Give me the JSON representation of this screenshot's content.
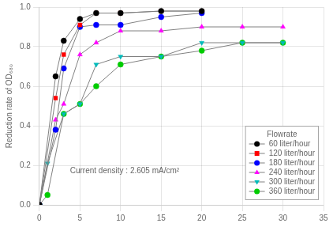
{
  "chart_data": {
    "type": "line",
    "ylabel": "Reduction rate of OD₆₈₀",
    "annotation": "Current density : 2.605 mA/cm²",
    "legend_title": "Flowrate",
    "color": "#808080",
    "series": [
      {
        "name": "60 liter/hour",
        "color": "#000000",
        "marker": "circle",
        "x": [
          0,
          2,
          3,
          5,
          7,
          10,
          15,
          20
        ],
        "values": [
          0.0,
          0.65,
          0.83,
          0.94,
          0.97,
          0.97,
          0.98,
          0.98
        ]
      },
      {
        "name": "120 liter/hour",
        "color": "#ff0000",
        "marker": "square",
        "x": [
          0,
          2,
          3,
          5,
          7,
          10,
          15,
          20
        ],
        "values": [
          0.0,
          0.54,
          0.76,
          0.91,
          0.97,
          0.97,
          0.98,
          0.98
        ]
      },
      {
        "name": "180 liter/hour",
        "color": "#0000ff",
        "marker": "circle",
        "x": [
          0,
          2,
          3,
          5,
          7,
          10,
          15,
          20
        ],
        "values": [
          0.0,
          0.38,
          0.69,
          0.9,
          0.91,
          0.91,
          0.95,
          0.97
        ]
      },
      {
        "name": "240 liter/hour",
        "color": "#ff00ff",
        "marker": "triangle_up",
        "x": [
          0,
          2,
          3,
          5,
          7,
          10,
          15,
          20,
          25,
          30
        ],
        "values": [
          0.0,
          0.43,
          0.51,
          0.76,
          0.82,
          0.88,
          0.88,
          0.9,
          0.9,
          0.9
        ]
      },
      {
        "name": "300 liter/hour",
        "color": "#00bbbb",
        "marker": "triangle_down",
        "x": [
          0,
          1,
          3,
          5,
          7,
          10,
          15,
          20,
          25,
          30
        ],
        "values": [
          0.0,
          0.21,
          0.46,
          0.51,
          0.71,
          0.75,
          0.75,
          0.82,
          0.82,
          0.82
        ]
      },
      {
        "name": "360 liter/hour",
        "color": "#00cc00",
        "marker": "circle",
        "x": [
          0,
          1,
          3,
          5,
          7,
          10,
          15,
          20,
          25,
          30
        ],
        "values": [
          0.0,
          0.05,
          0.46,
          0.51,
          0.6,
          0.71,
          0.75,
          0.78,
          0.82,
          0.82
        ]
      }
    ],
    "xlim": [
      0,
      35
    ],
    "ylim": [
      0,
      1
    ],
    "xticks": [
      0,
      5,
      10,
      15,
      20,
      25,
      30,
      35
    ],
    "yticks": [
      {
        "value": 0,
        "label": "0.0"
      },
      0.2,
      0.4,
      0.6,
      0.8,
      {
        "value": 1,
        "label": "1.0"
      }
    ],
    "grid": true,
    "legend": "lower right"
  }
}
